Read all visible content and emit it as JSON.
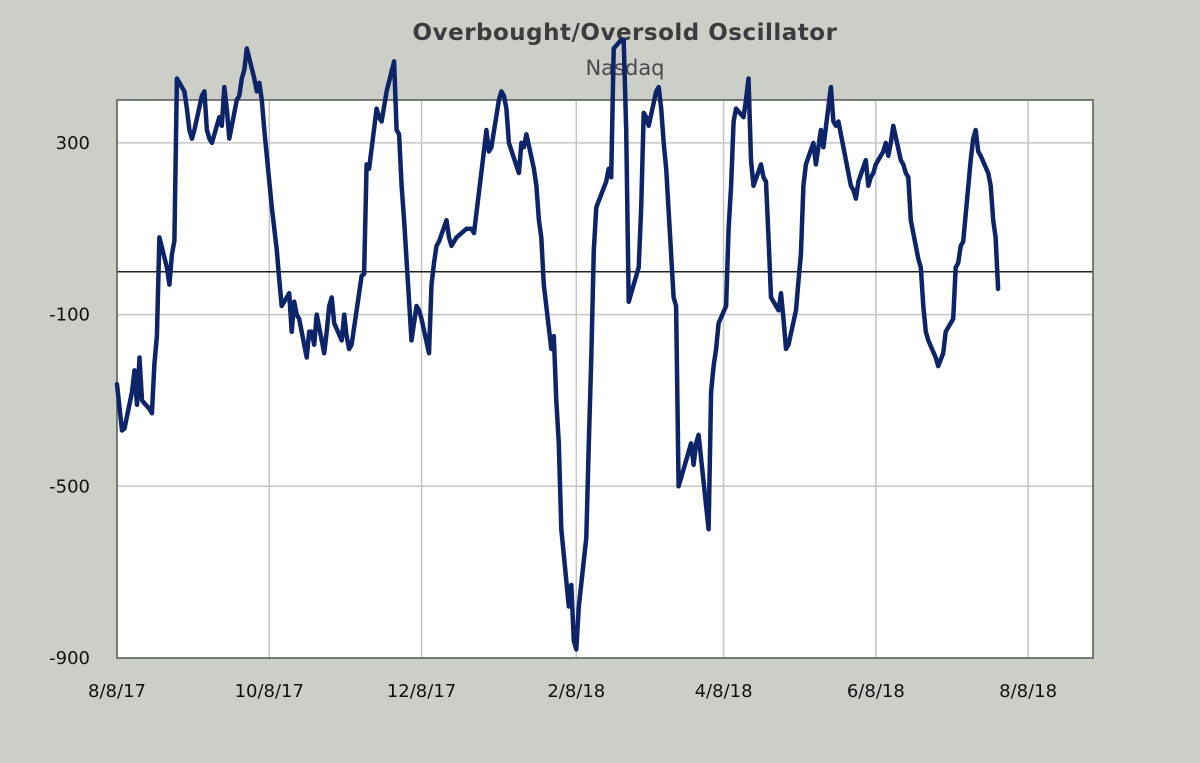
{
  "chart_data": {
    "type": "line",
    "title": "Overbought/Oversold  Oscillator",
    "subtitle": "Nasdaq",
    "xlabel": "",
    "ylabel": "",
    "x_axis": {
      "type": "date",
      "range": [
        "2017-08-08",
        "2018-09-03"
      ],
      "tick_dates": [
        "2017-08-08",
        "2017-10-08",
        "2017-12-08",
        "2018-02-08",
        "2018-04-08",
        "2018-06-08",
        "2018-08-08"
      ],
      "tick_labels": [
        "8/8/17",
        "10/8/17",
        "12/8/17",
        "2/8/18",
        "4/8/18",
        "6/8/18",
        "8/8/18"
      ]
    },
    "y_axis": {
      "range": [
        -900,
        400
      ],
      "ticks": [
        -900,
        -500,
        -100,
        300
      ],
      "tick_labels": [
        "-900",
        "-500",
        "-100",
        "300"
      ]
    },
    "grid": true,
    "zero_line": true,
    "colors": {
      "line": "#0d2468",
      "background": "#cbcfc8",
      "plot_background": "#ffffff",
      "grid": "#c6c6c6",
      "zero_line": "#222222"
    },
    "series": [
      {
        "points": [
          [
            "2017-08-08",
            -262
          ],
          [
            "2017-08-10",
            -370
          ],
          [
            "2017-08-11",
            -365
          ],
          [
            "2017-08-14",
            -280
          ],
          [
            "2017-08-15",
            -230
          ],
          [
            "2017-08-16",
            -310
          ],
          [
            "2017-08-17",
            -200
          ],
          [
            "2017-08-18",
            -300
          ],
          [
            "2017-08-21",
            -320
          ],
          [
            "2017-08-22",
            -330
          ],
          [
            "2017-08-23",
            -215
          ],
          [
            "2017-08-24",
            -150
          ],
          [
            "2017-08-25",
            80
          ],
          [
            "2017-08-28",
            10
          ],
          [
            "2017-08-29",
            -30
          ],
          [
            "2017-08-30",
            40
          ],
          [
            "2017-08-31",
            72
          ],
          [
            "2017-09-01",
            450
          ],
          [
            "2017-09-04",
            420
          ],
          [
            "2017-09-05",
            380
          ],
          [
            "2017-09-06",
            330
          ],
          [
            "2017-09-07",
            310
          ],
          [
            "2017-09-08",
            330
          ],
          [
            "2017-09-11",
            410
          ],
          [
            "2017-09-12",
            420
          ],
          [
            "2017-09-13",
            330
          ],
          [
            "2017-09-14",
            310
          ],
          [
            "2017-09-15",
            300
          ],
          [
            "2017-09-18",
            360
          ],
          [
            "2017-09-19",
            340
          ],
          [
            "2017-09-20",
            430
          ],
          [
            "2017-09-21",
            380
          ],
          [
            "2017-09-22",
            310
          ],
          [
            "2017-09-25",
            400
          ],
          [
            "2017-09-26",
            410
          ],
          [
            "2017-09-27",
            450
          ],
          [
            "2017-09-28",
            470
          ],
          [
            "2017-09-29",
            520
          ],
          [
            "2017-10-02",
            450
          ],
          [
            "2017-10-03",
            420
          ],
          [
            "2017-10-04",
            440
          ],
          [
            "2017-10-05",
            400
          ],
          [
            "2017-10-06",
            330
          ],
          [
            "2017-10-09",
            150
          ],
          [
            "2017-10-10",
            100
          ],
          [
            "2017-10-11",
            50
          ],
          [
            "2017-10-12",
            -20
          ],
          [
            "2017-10-13",
            -80
          ],
          [
            "2017-10-16",
            -50
          ],
          [
            "2017-10-17",
            -140
          ],
          [
            "2017-10-18",
            -70
          ],
          [
            "2017-10-19",
            -100
          ],
          [
            "2017-10-20",
            -110
          ],
          [
            "2017-10-23",
            -200
          ],
          [
            "2017-10-24",
            -140
          ],
          [
            "2017-10-25",
            -140
          ],
          [
            "2017-10-26",
            -170
          ],
          [
            "2017-10-27",
            -100
          ],
          [
            "2017-10-30",
            -190
          ],
          [
            "2017-10-31",
            -140
          ],
          [
            "2017-11-01",
            -80
          ],
          [
            "2017-11-02",
            -60
          ],
          [
            "2017-11-03",
            -120
          ],
          [
            "2017-11-06",
            -160
          ],
          [
            "2017-11-07",
            -100
          ],
          [
            "2017-11-08",
            -150
          ],
          [
            "2017-11-09",
            -180
          ],
          [
            "2017-11-10",
            -170
          ],
          [
            "2017-11-13",
            -50
          ],
          [
            "2017-11-14",
            -10
          ],
          [
            "2017-11-15",
            -5
          ],
          [
            "2017-11-16",
            250
          ],
          [
            "2017-11-17",
            240
          ],
          [
            "2017-11-20",
            380
          ],
          [
            "2017-11-21",
            360
          ],
          [
            "2017-11-22",
            350
          ],
          [
            "2017-11-24",
            420
          ],
          [
            "2017-11-27",
            490
          ],
          [
            "2017-11-28",
            330
          ],
          [
            "2017-11-29",
            320
          ],
          [
            "2017-11-30",
            200
          ],
          [
            "2017-12-01",
            120
          ],
          [
            "2017-12-04",
            -160
          ],
          [
            "2017-12-05",
            -120
          ],
          [
            "2017-12-06",
            -80
          ],
          [
            "2017-12-07",
            -90
          ],
          [
            "2017-12-08",
            -110
          ],
          [
            "2017-12-11",
            -190
          ],
          [
            "2017-12-12",
            -30
          ],
          [
            "2017-12-13",
            20
          ],
          [
            "2017-12-14",
            60
          ],
          [
            "2017-12-15",
            70
          ],
          [
            "2017-12-18",
            120
          ],
          [
            "2017-12-19",
            80
          ],
          [
            "2017-12-20",
            60
          ],
          [
            "2017-12-21",
            70
          ],
          [
            "2017-12-22",
            80
          ],
          [
            "2017-12-26",
            100
          ],
          [
            "2017-12-27",
            100
          ],
          [
            "2017-12-28",
            100
          ],
          [
            "2017-12-29",
            90
          ],
          [
            "2018-01-02",
            280
          ],
          [
            "2018-01-03",
            330
          ],
          [
            "2018-01-04",
            280
          ],
          [
            "2018-01-05",
            290
          ],
          [
            "2018-01-08",
            400
          ],
          [
            "2018-01-09",
            420
          ],
          [
            "2018-01-10",
            410
          ],
          [
            "2018-01-11",
            380
          ],
          [
            "2018-01-12",
            300
          ],
          [
            "2018-01-16",
            230
          ],
          [
            "2018-01-17",
            300
          ],
          [
            "2018-01-18",
            290
          ],
          [
            "2018-01-19",
            320
          ],
          [
            "2018-01-22",
            240
          ],
          [
            "2018-01-23",
            200
          ],
          [
            "2018-01-24",
            120
          ],
          [
            "2018-01-25",
            80
          ],
          [
            "2018-01-26",
            -30
          ],
          [
            "2018-01-29",
            -180
          ],
          [
            "2018-01-30",
            -150
          ],
          [
            "2018-01-31",
            -300
          ],
          [
            "2018-02-01",
            -400
          ],
          [
            "2018-02-02",
            -600
          ],
          [
            "2018-02-05",
            -780
          ],
          [
            "2018-02-06",
            -730
          ],
          [
            "2018-02-07",
            -860
          ],
          [
            "2018-02-08",
            -880
          ],
          [
            "2018-02-09",
            -780
          ],
          [
            "2018-02-12",
            -620
          ],
          [
            "2018-02-13",
            -400
          ],
          [
            "2018-02-14",
            -200
          ],
          [
            "2018-02-15",
            50
          ],
          [
            "2018-02-16",
            150
          ],
          [
            "2018-02-20",
            210
          ],
          [
            "2018-02-21",
            240
          ],
          [
            "2018-02-22",
            220
          ],
          [
            "2018-02-23",
            520
          ],
          [
            "2018-02-26",
            540
          ],
          [
            "2018-02-27",
            540
          ],
          [
            "2018-02-28",
            330
          ],
          [
            "2018-03-01",
            -70
          ],
          [
            "2018-03-02",
            -50
          ],
          [
            "2018-03-05",
            10
          ],
          [
            "2018-03-06",
            150
          ],
          [
            "2018-03-07",
            370
          ],
          [
            "2018-03-08",
            360
          ],
          [
            "2018-03-09",
            340
          ],
          [
            "2018-03-12",
            420
          ],
          [
            "2018-03-13",
            430
          ],
          [
            "2018-03-14",
            380
          ],
          [
            "2018-03-15",
            300
          ],
          [
            "2018-03-16",
            240
          ],
          [
            "2018-03-19",
            -60
          ],
          [
            "2018-03-20",
            -80
          ],
          [
            "2018-03-21",
            -500
          ],
          [
            "2018-03-22",
            -480
          ],
          [
            "2018-03-23",
            -460
          ],
          [
            "2018-03-26",
            -400
          ],
          [
            "2018-03-27",
            -450
          ],
          [
            "2018-03-28",
            -400
          ],
          [
            "2018-03-29",
            -380
          ],
          [
            "2018-04-02",
            -600
          ],
          [
            "2018-04-03",
            -280
          ],
          [
            "2018-04-04",
            -220
          ],
          [
            "2018-04-05",
            -180
          ],
          [
            "2018-04-06",
            -120
          ],
          [
            "2018-04-09",
            -80
          ],
          [
            "2018-04-10",
            100
          ],
          [
            "2018-04-11",
            200
          ],
          [
            "2018-04-12",
            350
          ],
          [
            "2018-04-13",
            380
          ],
          [
            "2018-04-16",
            360
          ],
          [
            "2018-04-17",
            400
          ],
          [
            "2018-04-18",
            450
          ],
          [
            "2018-04-19",
            260
          ],
          [
            "2018-04-20",
            200
          ],
          [
            "2018-04-23",
            250
          ],
          [
            "2018-04-24",
            220
          ],
          [
            "2018-04-25",
            210
          ],
          [
            "2018-04-26",
            80
          ],
          [
            "2018-04-27",
            -60
          ],
          [
            "2018-04-30",
            -90
          ],
          [
            "2018-05-01",
            -50
          ],
          [
            "2018-05-02",
            -110
          ],
          [
            "2018-05-03",
            -180
          ],
          [
            "2018-05-04",
            -170
          ],
          [
            "2018-05-07",
            -90
          ],
          [
            "2018-05-08",
            -20
          ],
          [
            "2018-05-09",
            40
          ],
          [
            "2018-05-10",
            200
          ],
          [
            "2018-05-11",
            250
          ],
          [
            "2018-05-14",
            300
          ],
          [
            "2018-05-15",
            250
          ],
          [
            "2018-05-16",
            290
          ],
          [
            "2018-05-17",
            330
          ],
          [
            "2018-05-18",
            290
          ],
          [
            "2018-05-21",
            430
          ],
          [
            "2018-05-22",
            350
          ],
          [
            "2018-05-23",
            340
          ],
          [
            "2018-05-24",
            350
          ],
          [
            "2018-05-25",
            320
          ],
          [
            "2018-05-29",
            200
          ],
          [
            "2018-05-30",
            190
          ],
          [
            "2018-05-31",
            170
          ],
          [
            "2018-06-01",
            210
          ],
          [
            "2018-06-04",
            260
          ],
          [
            "2018-06-05",
            200
          ],
          [
            "2018-06-06",
            220
          ],
          [
            "2018-06-07",
            230
          ],
          [
            "2018-06-08",
            250
          ],
          [
            "2018-06-11",
            280
          ],
          [
            "2018-06-12",
            300
          ],
          [
            "2018-06-13",
            270
          ],
          [
            "2018-06-14",
            300
          ],
          [
            "2018-06-15",
            340
          ],
          [
            "2018-06-18",
            260
          ],
          [
            "2018-06-19",
            250
          ],
          [
            "2018-06-20",
            230
          ],
          [
            "2018-06-21",
            220
          ],
          [
            "2018-06-22",
            120
          ],
          [
            "2018-06-25",
            30
          ],
          [
            "2018-06-26",
            10
          ],
          [
            "2018-06-27",
            -80
          ],
          [
            "2018-06-28",
            -140
          ],
          [
            "2018-06-29",
            -160
          ],
          [
            "2018-07-02",
            -200
          ],
          [
            "2018-07-03",
            -220
          ],
          [
            "2018-07-05",
            -190
          ],
          [
            "2018-07-06",
            -140
          ],
          [
            "2018-07-09",
            -110
          ],
          [
            "2018-07-10",
            10
          ],
          [
            "2018-07-11",
            20
          ],
          [
            "2018-07-12",
            60
          ],
          [
            "2018-07-13",
            70
          ],
          [
            "2018-07-16",
            260
          ],
          [
            "2018-07-17",
            310
          ],
          [
            "2018-07-18",
            330
          ],
          [
            "2018-07-19",
            280
          ],
          [
            "2018-07-20",
            270
          ],
          [
            "2018-07-23",
            230
          ],
          [
            "2018-07-24",
            200
          ],
          [
            "2018-07-25",
            120
          ],
          [
            "2018-07-26",
            80
          ],
          [
            "2018-07-27",
            -40
          ]
        ]
      }
    ]
  }
}
